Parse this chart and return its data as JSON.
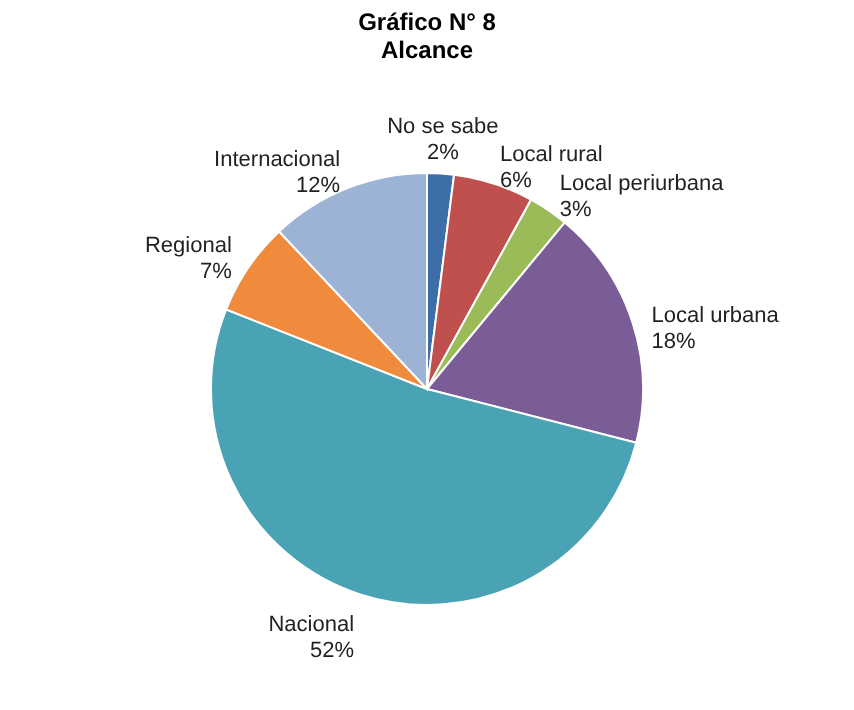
{
  "chart_data": {
    "type": "pie",
    "title": [
      "Gráfico N° 8",
      "Alcance"
    ],
    "categories": [
      "No se sabe",
      "Local rural",
      "Local periurbana",
      "Local urbana",
      "Nacional",
      "Regional",
      "Internacional"
    ],
    "values": [
      2,
      6,
      3,
      18,
      52,
      7,
      12
    ],
    "value_labels": [
      "2%",
      "6%",
      "3%",
      "18%",
      "52%",
      "7%",
      "12%"
    ],
    "colors": [
      "#3e6ea8",
      "#c0504d",
      "#9bbb59",
      "#7a5c96",
      "#4aa3b5",
      "#f08a3c",
      "#9db3d6"
    ],
    "legend": false
  }
}
